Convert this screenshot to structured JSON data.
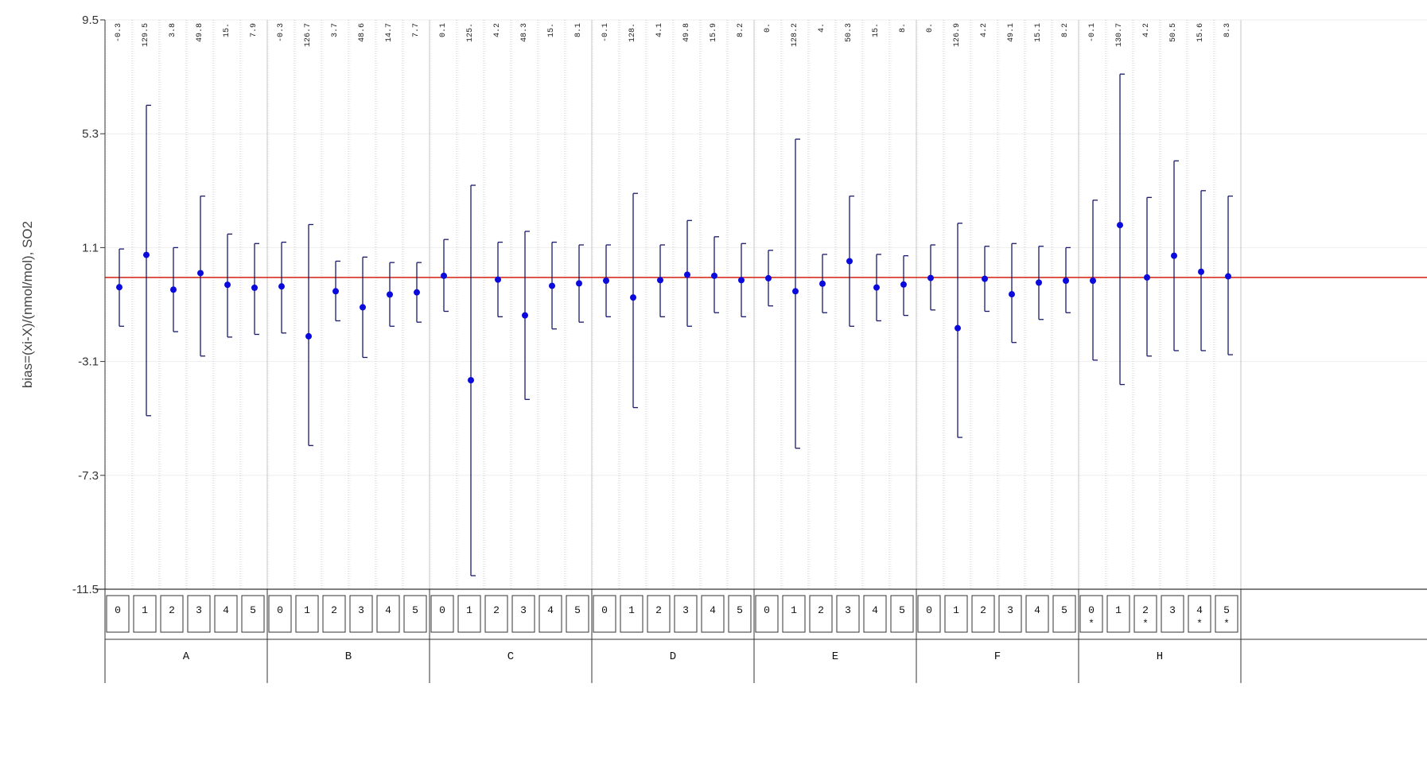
{
  "chart_data": {
    "type": "scatter",
    "ylabel": "bias=(xi-X)/(nmol/mol), SO2",
    "ylim": [
      -11.5,
      9.5
    ],
    "yticks": [
      "9.5",
      "5.3",
      "1.1",
      "-3.1",
      "-7.3",
      "-11.5"
    ],
    "reference_line": 0.0,
    "grid": "vertical dotted lines per level, solid lines between groups",
    "colors": {
      "points": "#0a0adc",
      "errorbars": "#1a1a6e",
      "reference": "#d83020",
      "grid": "#c8c8c8"
    },
    "groups": [
      {
        "name": "A",
        "levels": [
          {
            "level": "0",
            "top_label": "-0.3",
            "bias": -0.36,
            "upper": 1.05,
            "lower": -1.8,
            "marked": false
          },
          {
            "level": "1",
            "top_label": "129.5",
            "bias": 0.83,
            "upper": 6.35,
            "lower": -5.1,
            "marked": false
          },
          {
            "level": "2",
            "top_label": "3.8",
            "bias": -0.45,
            "upper": 1.1,
            "lower": -2.0,
            "marked": false
          },
          {
            "level": "3",
            "top_label": "49.8",
            "bias": 0.16,
            "upper": 3.0,
            "lower": -2.9,
            "marked": false
          },
          {
            "level": "4",
            "top_label": "15.",
            "bias": -0.27,
            "upper": 1.6,
            "lower": -2.2,
            "marked": false
          },
          {
            "level": "5",
            "top_label": "7.9",
            "bias": -0.38,
            "upper": 1.25,
            "lower": -2.1,
            "marked": false
          }
        ]
      },
      {
        "name": "B",
        "levels": [
          {
            "level": "0",
            "top_label": "-0.3",
            "bias": -0.33,
            "upper": 1.3,
            "lower": -2.05,
            "marked": false
          },
          {
            "level": "1",
            "top_label": "126.7",
            "bias": -2.17,
            "upper": 1.95,
            "lower": -6.2,
            "marked": false
          },
          {
            "level": "2",
            "top_label": "3.7",
            "bias": -0.51,
            "upper": 0.6,
            "lower": -1.6,
            "marked": false
          },
          {
            "level": "3",
            "top_label": "48.6",
            "bias": -1.1,
            "upper": 0.75,
            "lower": -2.95,
            "marked": false
          },
          {
            "level": "4",
            "top_label": "14.7",
            "bias": -0.63,
            "upper": 0.55,
            "lower": -1.8,
            "marked": false
          },
          {
            "level": "5",
            "top_label": "7.7",
            "bias": -0.55,
            "upper": 0.55,
            "lower": -1.65,
            "marked": false
          }
        ]
      },
      {
        "name": "C",
        "levels": [
          {
            "level": "0",
            "top_label": "0.1",
            "bias": 0.06,
            "upper": 1.4,
            "lower": -1.25,
            "marked": false
          },
          {
            "level": "1",
            "top_label": "125.",
            "bias": -3.79,
            "upper": 3.4,
            "lower": -11.0,
            "marked": false
          },
          {
            "level": "2",
            "top_label": "4.2",
            "bias": -0.08,
            "upper": 1.3,
            "lower": -1.45,
            "marked": false
          },
          {
            "level": "3",
            "top_label": "48.3",
            "bias": -1.4,
            "upper": 1.7,
            "lower": -4.5,
            "marked": false
          },
          {
            "level": "4",
            "top_label": "15.",
            "bias": -0.31,
            "upper": 1.3,
            "lower": -1.9,
            "marked": false
          },
          {
            "level": "5",
            "top_label": "8.1",
            "bias": -0.22,
            "upper": 1.2,
            "lower": -1.65,
            "marked": false
          }
        ]
      },
      {
        "name": "D",
        "levels": [
          {
            "level": "0",
            "top_label": "-0.1",
            "bias": -0.12,
            "upper": 1.2,
            "lower": -1.45,
            "marked": false
          },
          {
            "level": "1",
            "top_label": "128.",
            "bias": -0.74,
            "upper": 3.1,
            "lower": -4.8,
            "marked": false
          },
          {
            "level": "2",
            "top_label": "4.1",
            "bias": -0.1,
            "upper": 1.2,
            "lower": -1.45,
            "marked": false
          },
          {
            "level": "3",
            "top_label": "49.8",
            "bias": 0.1,
            "upper": 2.1,
            "lower": -1.8,
            "marked": false
          },
          {
            "level": "4",
            "top_label": "15.9",
            "bias": 0.06,
            "upper": 1.5,
            "lower": -1.3,
            "marked": false
          },
          {
            "level": "5",
            "top_label": "8.2",
            "bias": -0.1,
            "upper": 1.25,
            "lower": -1.45,
            "marked": false
          }
        ]
      },
      {
        "name": "E",
        "levels": [
          {
            "level": "0",
            "top_label": "0.",
            "bias": -0.03,
            "upper": 1.0,
            "lower": -1.05,
            "marked": false
          },
          {
            "level": "1",
            "top_label": "128.2",
            "bias": -0.51,
            "upper": 5.1,
            "lower": -6.3,
            "marked": false
          },
          {
            "level": "2",
            "top_label": "4.",
            "bias": -0.23,
            "upper": 0.85,
            "lower": -1.3,
            "marked": false
          },
          {
            "level": "3",
            "top_label": "50.3",
            "bias": 0.6,
            "upper": 3.0,
            "lower": -1.8,
            "marked": false
          },
          {
            "level": "4",
            "top_label": "15.",
            "bias": -0.37,
            "upper": 0.85,
            "lower": -1.6,
            "marked": false
          },
          {
            "level": "5",
            "top_label": "8.",
            "bias": -0.26,
            "upper": 0.8,
            "lower": -1.4,
            "marked": false
          }
        ]
      },
      {
        "name": "F",
        "levels": [
          {
            "level": "0",
            "top_label": "0.",
            "bias": -0.02,
            "upper": 1.2,
            "lower": -1.2,
            "marked": false
          },
          {
            "level": "1",
            "top_label": "126.9",
            "bias": -1.87,
            "upper": 2.0,
            "lower": -5.9,
            "marked": false
          },
          {
            "level": "2",
            "top_label": "4.2",
            "bias": -0.05,
            "upper": 1.15,
            "lower": -1.25,
            "marked": false
          },
          {
            "level": "3",
            "top_label": "49.1",
            "bias": -0.62,
            "upper": 1.25,
            "lower": -2.4,
            "marked": false
          },
          {
            "level": "4",
            "top_label": "15.1",
            "bias": -0.19,
            "upper": 1.15,
            "lower": -1.55,
            "marked": false
          },
          {
            "level": "5",
            "top_label": "8.2",
            "bias": -0.12,
            "upper": 1.1,
            "lower": -1.3,
            "marked": false
          }
        ]
      },
      {
        "name": "H",
        "levels": [
          {
            "level": "0",
            "top_label": "-0.1",
            "bias": -0.12,
            "upper": 2.85,
            "lower": -3.05,
            "marked": true
          },
          {
            "level": "1",
            "top_label": "130.7",
            "bias": 1.93,
            "upper": 7.5,
            "lower": -3.95,
            "marked": false
          },
          {
            "level": "2",
            "top_label": "4.2",
            "bias": 0.0,
            "upper": 2.95,
            "lower": -2.9,
            "marked": true
          },
          {
            "level": "3",
            "top_label": "50.5",
            "bias": 0.8,
            "upper": 4.3,
            "lower": -2.7,
            "marked": false
          },
          {
            "level": "4",
            "top_label": "15.6",
            "bias": 0.21,
            "upper": 3.2,
            "lower": -2.7,
            "marked": true
          },
          {
            "level": "5",
            "top_label": "8.3",
            "bias": 0.04,
            "upper": 3.0,
            "lower": -2.85,
            "marked": true
          }
        ]
      }
    ]
  }
}
